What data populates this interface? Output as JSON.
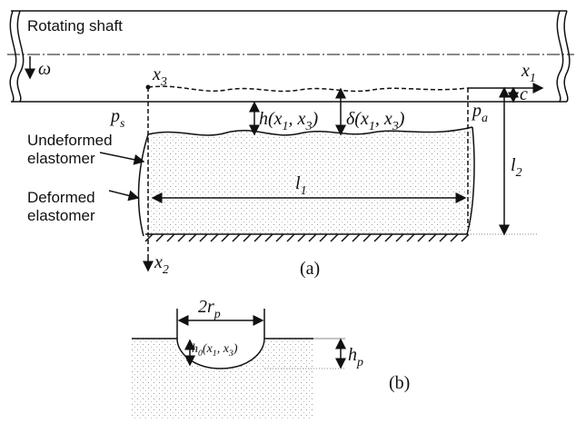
{
  "figure_a": {
    "shaft_label": [
      "Rotating shaft"
    ],
    "omega": [
      "ω"
    ],
    "x3": [
      "x",
      {
        "sub": "3"
      }
    ],
    "x1": [
      "x",
      {
        "sub": "1"
      }
    ],
    "x2": [
      "x",
      {
        "sub": "2"
      }
    ],
    "c": [
      "c"
    ],
    "ps": [
      "p",
      {
        "sub": "s"
      }
    ],
    "pa": [
      "p",
      {
        "sub": "a"
      }
    ],
    "h": [
      "h(x",
      {
        "sub": "1"
      },
      ", x",
      {
        "sub": "3"
      },
      ")"
    ],
    "delta": [
      "δ(x",
      {
        "sub": "1"
      },
      ", x",
      {
        "sub": "3"
      },
      ")"
    ],
    "undeformed": [
      "Undeformed",
      "elastomer"
    ],
    "deformed": [
      "Deformed",
      "elastomer"
    ],
    "l1": [
      "l",
      {
        "sub": "1"
      }
    ],
    "l2": [
      "l",
      {
        "sub": "2"
      }
    ],
    "caption": [
      "(a)"
    ]
  },
  "figure_b": {
    "two_rp": [
      "2r",
      {
        "sub": "p"
      }
    ],
    "h0": [
      "h",
      {
        "sub": "0"
      },
      "(x",
      {
        "sub": "1"
      },
      ", x",
      {
        "sub": "3"
      },
      ")"
    ],
    "hp": [
      "h",
      {
        "sub": "p"
      }
    ],
    "caption": [
      "(b)"
    ]
  }
}
